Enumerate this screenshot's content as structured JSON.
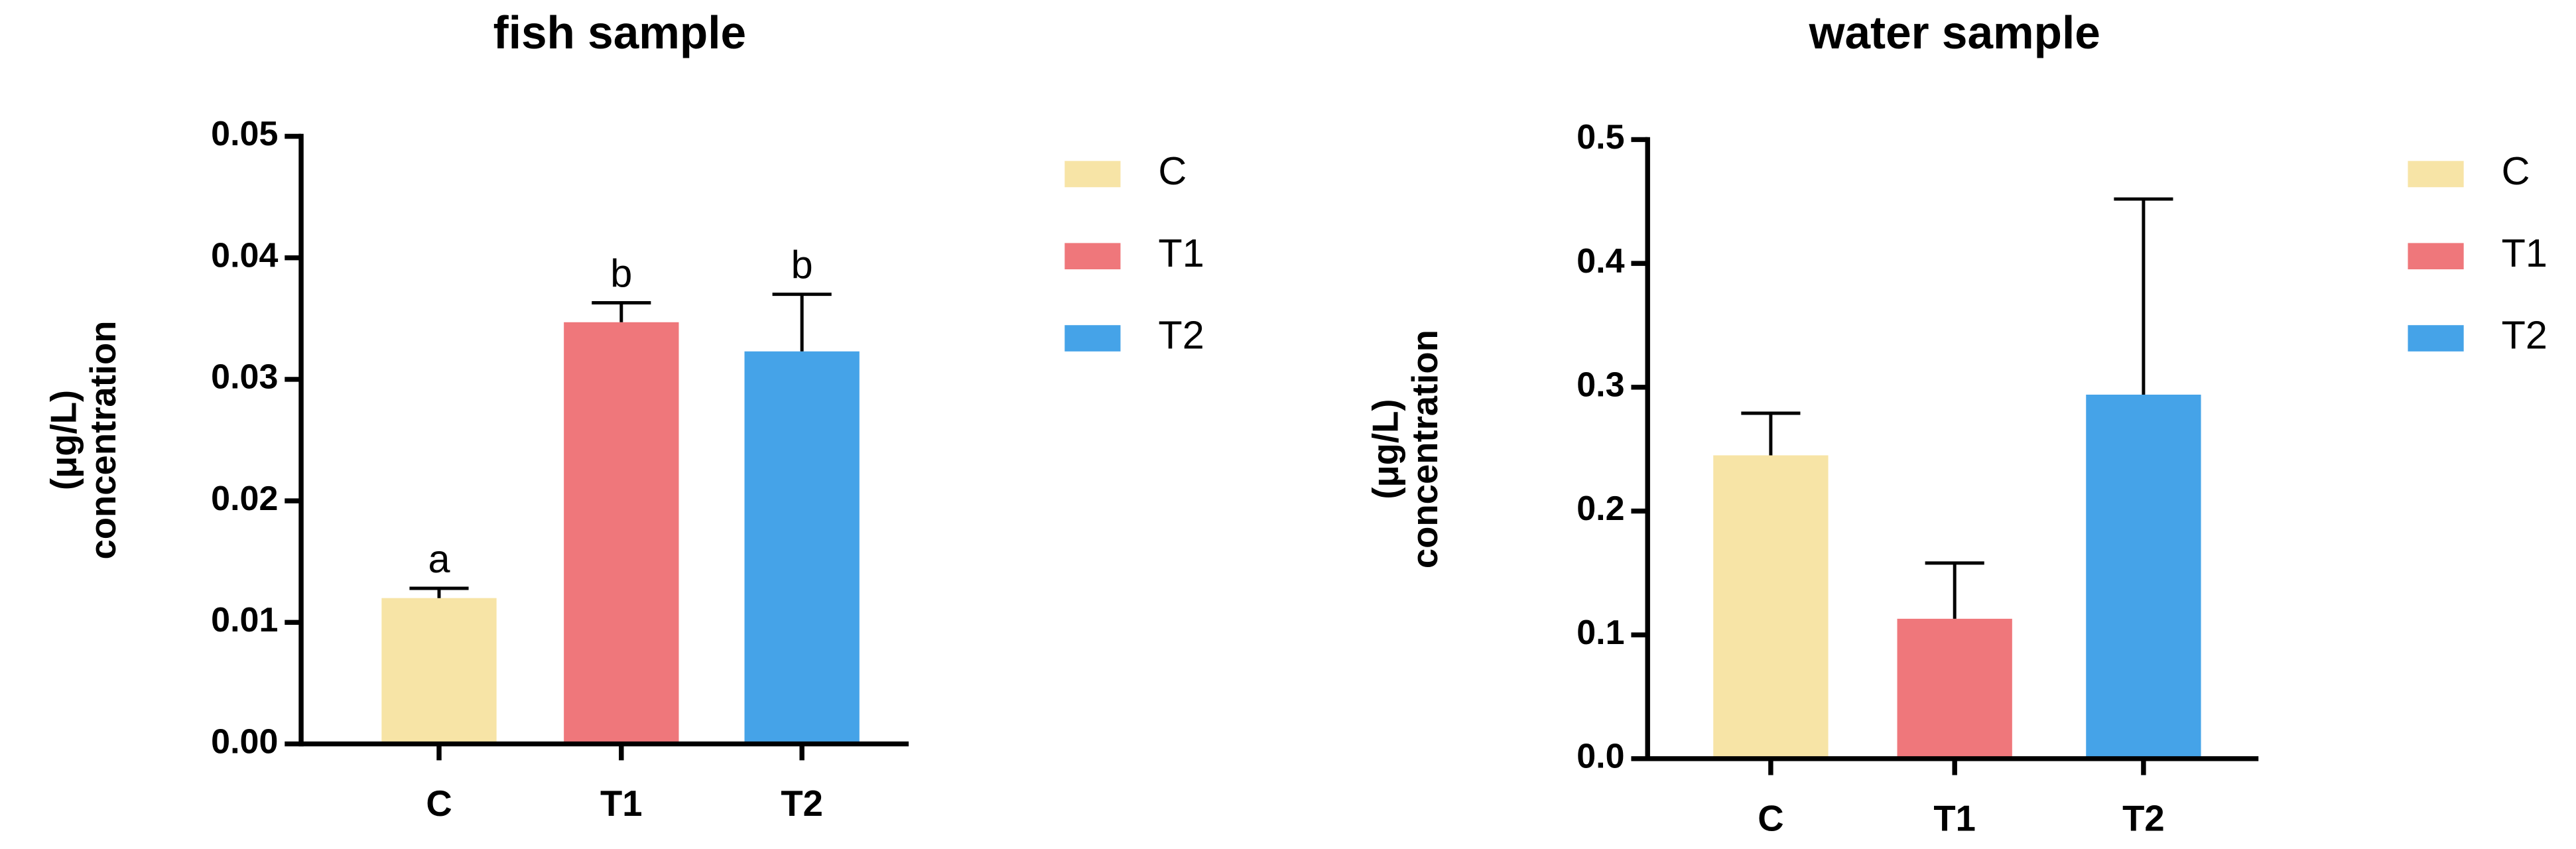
{
  "chart_data": [
    {
      "type": "bar",
      "title": "fish sample",
      "ylabel": [
        "(μg/L)",
        "concentration"
      ],
      "categories": [
        "C",
        "T1",
        "T2"
      ],
      "values": [
        0.012,
        0.0347,
        0.0323
      ],
      "errors": [
        0.0008,
        0.0016,
        0.0047
      ],
      "annotations": [
        "a",
        "b",
        "b"
      ],
      "colors": [
        "#f7e4a6",
        "#ef777b",
        "#45a3e8"
      ],
      "ylim": [
        0,
        0.05
      ],
      "yticks": [
        {
          "value": 0,
          "label": "0.00"
        },
        0.01,
        0.02,
        0.03,
        0.04,
        0.05
      ],
      "legend": "right"
    },
    {
      "type": "bar",
      "title": "water sample",
      "ylabel": [
        "(μg/L)",
        "concentration"
      ],
      "categories": [
        "C",
        "T1",
        "T2"
      ],
      "values": [
        0.245,
        0.113,
        0.294
      ],
      "errors": [
        0.034,
        0.045,
        0.158
      ],
      "colors": [
        "#f7e4a6",
        "#ef777b",
        "#45a3e8"
      ],
      "ylim": [
        0,
        0.5
      ],
      "yticks": [
        {
          "value": 0,
          "label": "0.0"
        },
        0.1,
        0.2,
        0.3,
        0.4,
        0.5
      ],
      "legend": "right"
    }
  ]
}
